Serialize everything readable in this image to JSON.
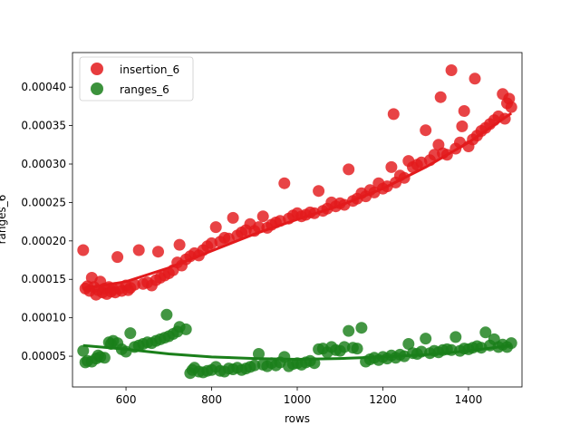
{
  "chart_data": {
    "type": "scatter",
    "xlabel": "rows",
    "ylabel": "ranges_6",
    "xlim": [
      475,
      1525
    ],
    "ylim": [
      1e-05,
      0.000445
    ],
    "x_ticks": [
      600,
      800,
      1000,
      1200,
      1400
    ],
    "x_tick_labels": [
      "600",
      "800",
      "1000",
      "1200",
      "1400"
    ],
    "y_ticks": [
      5e-05,
      0.0001,
      0.00015,
      0.0002,
      0.00025,
      0.0003,
      0.00035,
      0.0004
    ],
    "y_tick_labels": [
      "0.00005",
      "0.00010",
      "0.00015",
      "0.00020",
      "0.00025",
      "0.00030",
      "0.00035",
      "0.00040"
    ],
    "grid": false,
    "legend_position": "top-left",
    "series": [
      {
        "name": "insertion_6",
        "color": "#e31a1c",
        "fit_line": [
          [
            500,
            0.000138
          ],
          [
            600,
            0.000147
          ],
          [
            700,
            0.000165
          ],
          [
            800,
            0.000187
          ],
          [
            900,
            0.000209
          ],
          [
            1000,
            0.000228
          ],
          [
            1100,
            0.000246
          ],
          [
            1200,
            0.000268
          ],
          [
            1300,
            0.000296
          ],
          [
            1400,
            0.000328
          ],
          [
            1500,
            0.000366
          ]
        ],
        "points": [
          [
            500,
            0.000188
          ],
          [
            505,
            0.000138
          ],
          [
            510,
            0.000141
          ],
          [
            515,
            0.000135
          ],
          [
            520,
            0.000152
          ],
          [
            525,
            0.00014
          ],
          [
            530,
            0.00013
          ],
          [
            535,
            0.000136
          ],
          [
            540,
            0.000147
          ],
          [
            545,
            0.000133
          ],
          [
            550,
            0.000138
          ],
          [
            555,
            0.000131
          ],
          [
            560,
            0.00014
          ],
          [
            565,
            0.000134
          ],
          [
            570,
            0.000137
          ],
          [
            575,
            0.000133
          ],
          [
            580,
            0.000179
          ],
          [
            585,
            0.000138
          ],
          [
            590,
            0.000135
          ],
          [
            600,
            0.000142
          ],
          [
            605,
            0.000136
          ],
          [
            610,
            0.000139
          ],
          [
            620,
            0.000143
          ],
          [
            630,
            0.000188
          ],
          [
            640,
            0.000144
          ],
          [
            650,
            0.000146
          ],
          [
            660,
            0.000142
          ],
          [
            670,
            0.000149
          ],
          [
            675,
            0.000186
          ],
          [
            680,
            0.000152
          ],
          [
            690,
            0.000155
          ],
          [
            700,
            0.000158
          ],
          [
            710,
            0.000162
          ],
          [
            720,
            0.000172
          ],
          [
            725,
            0.000195
          ],
          [
            730,
            0.000168
          ],
          [
            740,
            0.000176
          ],
          [
            750,
            0.00018
          ],
          [
            760,
            0.000184
          ],
          [
            770,
            0.000181
          ],
          [
            780,
            0.000188
          ],
          [
            790,
            0.000193
          ],
          [
            800,
            0.000197
          ],
          [
            810,
            0.000218
          ],
          [
            820,
            0.000199
          ],
          [
            830,
            0.000204
          ],
          [
            840,
            0.000203
          ],
          [
            850,
            0.00023
          ],
          [
            860,
            0.000207
          ],
          [
            870,
            0.000211
          ],
          [
            880,
            0.000214
          ],
          [
            890,
            0.000222
          ],
          [
            900,
            0.000213
          ],
          [
            910,
            0.000218
          ],
          [
            920,
            0.000232
          ],
          [
            930,
            0.000217
          ],
          [
            940,
            0.000221
          ],
          [
            950,
            0.000224
          ],
          [
            960,
            0.000226
          ],
          [
            970,
            0.000275
          ],
          [
            980,
            0.000229
          ],
          [
            990,
            0.000233
          ],
          [
            1000,
            0.000236
          ],
          [
            1010,
            0.000232
          ],
          [
            1020,
            0.000234
          ],
          [
            1030,
            0.000237
          ],
          [
            1040,
            0.000236
          ],
          [
            1050,
            0.000265
          ],
          [
            1060,
            0.000239
          ],
          [
            1070,
            0.000242
          ],
          [
            1080,
            0.00025
          ],
          [
            1090,
            0.000245
          ],
          [
            1100,
            0.000249
          ],
          [
            1110,
            0.000247
          ],
          [
            1120,
            0.000293
          ],
          [
            1130,
            0.000252
          ],
          [
            1140,
            0.000255
          ],
          [
            1150,
            0.000262
          ],
          [
            1160,
            0.000258
          ],
          [
            1170,
            0.000266
          ],
          [
            1180,
            0.000263
          ],
          [
            1190,
            0.000275
          ],
          [
            1200,
            0.000268
          ],
          [
            1210,
            0.000271
          ],
          [
            1220,
            0.000296
          ],
          [
            1225,
            0.000365
          ],
          [
            1230,
            0.000276
          ],
          [
            1240,
            0.000285
          ],
          [
            1250,
            0.000282
          ],
          [
            1260,
            0.000304
          ],
          [
            1270,
            0.000296
          ],
          [
            1280,
            0.000299
          ],
          [
            1290,
            0.000302
          ],
          [
            1300,
            0.000344
          ],
          [
            1310,
            0.000305
          ],
          [
            1320,
            0.000312
          ],
          [
            1330,
            0.000325
          ],
          [
            1335,
            0.000387
          ],
          [
            1340,
            0.000314
          ],
          [
            1350,
            0.000312
          ],
          [
            1360,
            0.000422
          ],
          [
            1370,
            0.00032
          ],
          [
            1380,
            0.000328
          ],
          [
            1385,
            0.000349
          ],
          [
            1390,
            0.000369
          ],
          [
            1400,
            0.000323
          ],
          [
            1410,
            0.000332
          ],
          [
            1415,
            0.000411
          ],
          [
            1420,
            0.000337
          ],
          [
            1430,
            0.000343
          ],
          [
            1440,
            0.000347
          ],
          [
            1450,
            0.000352
          ],
          [
            1460,
            0.000357
          ],
          [
            1470,
            0.000362
          ],
          [
            1480,
            0.000391
          ],
          [
            1485,
            0.000359
          ],
          [
            1490,
            0.000379
          ],
          [
            1495,
            0.000385
          ],
          [
            1500,
            0.000374
          ]
        ]
      },
      {
        "name": "ranges_6",
        "color": "#1a7f1a",
        "fit_line": [
          [
            500,
            6.4e-05
          ],
          [
            600,
            5.9e-05
          ],
          [
            700,
            5.3e-05
          ],
          [
            800,
            4.9e-05
          ],
          [
            900,
            4.7e-05
          ],
          [
            1000,
            4.6e-05
          ],
          [
            1100,
            4.7e-05
          ],
          [
            1200,
            4.9e-05
          ],
          [
            1300,
            5.2e-05
          ],
          [
            1400,
            5.7e-05
          ],
          [
            1500,
            6.4e-05
          ]
        ],
        "points": [
          [
            500,
            5.7e-05
          ],
          [
            505,
            4.2e-05
          ],
          [
            510,
            4.4e-05
          ],
          [
            520,
            4.3e-05
          ],
          [
            530,
            4.7e-05
          ],
          [
            535,
            5.1e-05
          ],
          [
            540,
            4.9e-05
          ],
          [
            550,
            4.8e-05
          ],
          [
            560,
            6.8e-05
          ],
          [
            565,
            6.6e-05
          ],
          [
            570,
            7e-05
          ],
          [
            580,
            6.7e-05
          ],
          [
            590,
            5.9e-05
          ],
          [
            600,
            5.6e-05
          ],
          [
            610,
            8e-05
          ],
          [
            620,
            6.2e-05
          ],
          [
            630,
            6.4e-05
          ],
          [
            640,
            6.6e-05
          ],
          [
            650,
            6.8e-05
          ],
          [
            660,
            6.7e-05
          ],
          [
            670,
            7e-05
          ],
          [
            680,
            7.2e-05
          ],
          [
            690,
            7.4e-05
          ],
          [
            695,
            0.000104
          ],
          [
            700,
            7.6e-05
          ],
          [
            710,
            7.9e-05
          ],
          [
            720,
            8.2e-05
          ],
          [
            725,
            8.8e-05
          ],
          [
            740,
            8.5e-05
          ],
          [
            750,
            2.8e-05
          ],
          [
            755,
            3.2e-05
          ],
          [
            760,
            3.5e-05
          ],
          [
            770,
            3e-05
          ],
          [
            780,
            2.9e-05
          ],
          [
            790,
            3.1e-05
          ],
          [
            800,
            3.2e-05
          ],
          [
            810,
            3.6e-05
          ],
          [
            820,
            3.1e-05
          ],
          [
            830,
            3e-05
          ],
          [
            840,
            3.4e-05
          ],
          [
            850,
            3.3e-05
          ],
          [
            860,
            3.5e-05
          ],
          [
            870,
            3.2e-05
          ],
          [
            880,
            3.4e-05
          ],
          [
            890,
            3.6e-05
          ],
          [
            900,
            3.8e-05
          ],
          [
            910,
            5.3e-05
          ],
          [
            920,
            3.9e-05
          ],
          [
            930,
            3.7e-05
          ],
          [
            940,
            4.1e-05
          ],
          [
            950,
            3.8e-05
          ],
          [
            960,
            4.2e-05
          ],
          [
            970,
            4.9e-05
          ],
          [
            980,
            3.7e-05
          ],
          [
            990,
            4e-05
          ],
          [
            1000,
            4.1e-05
          ],
          [
            1010,
            3.9e-05
          ],
          [
            1020,
            4.2e-05
          ],
          [
            1030,
            4.4e-05
          ],
          [
            1040,
            4.1e-05
          ],
          [
            1050,
            5.9e-05
          ],
          [
            1060,
            6e-05
          ],
          [
            1070,
            5.5e-05
          ],
          [
            1080,
            6.2e-05
          ],
          [
            1090,
            5.8e-05
          ],
          [
            1100,
            5.7e-05
          ],
          [
            1110,
            6.2e-05
          ],
          [
            1120,
            8.3e-05
          ],
          [
            1130,
            6.1e-05
          ],
          [
            1140,
            6e-05
          ],
          [
            1150,
            8.7e-05
          ],
          [
            1160,
            4.3e-05
          ],
          [
            1170,
            4.6e-05
          ],
          [
            1180,
            4.8e-05
          ],
          [
            1190,
            4.5e-05
          ],
          [
            1200,
            4.9e-05
          ],
          [
            1210,
            4.7e-05
          ],
          [
            1220,
            5.1e-05
          ],
          [
            1230,
            4.8e-05
          ],
          [
            1240,
            5.2e-05
          ],
          [
            1250,
            5e-05
          ],
          [
            1260,
            6.6e-05
          ],
          [
            1270,
            5.4e-05
          ],
          [
            1280,
            5.3e-05
          ],
          [
            1290,
            5.6e-05
          ],
          [
            1300,
            7.3e-05
          ],
          [
            1310,
            5.4e-05
          ],
          [
            1320,
            5.7e-05
          ],
          [
            1330,
            5.5e-05
          ],
          [
            1340,
            5.8e-05
          ],
          [
            1350,
            5.9e-05
          ],
          [
            1360,
            5.8e-05
          ],
          [
            1370,
            7.5e-05
          ],
          [
            1380,
            5.7e-05
          ],
          [
            1390,
            6e-05
          ],
          [
            1400,
            5.9e-05
          ],
          [
            1410,
            6.1e-05
          ],
          [
            1420,
            6.3e-05
          ],
          [
            1430,
            6.1e-05
          ],
          [
            1440,
            8.1e-05
          ],
          [
            1450,
            6.4e-05
          ],
          [
            1460,
            7.2e-05
          ],
          [
            1470,
            6.2e-05
          ],
          [
            1480,
            6.5e-05
          ],
          [
            1490,
            6.2e-05
          ],
          [
            1500,
            6.7e-05
          ]
        ]
      }
    ]
  }
}
